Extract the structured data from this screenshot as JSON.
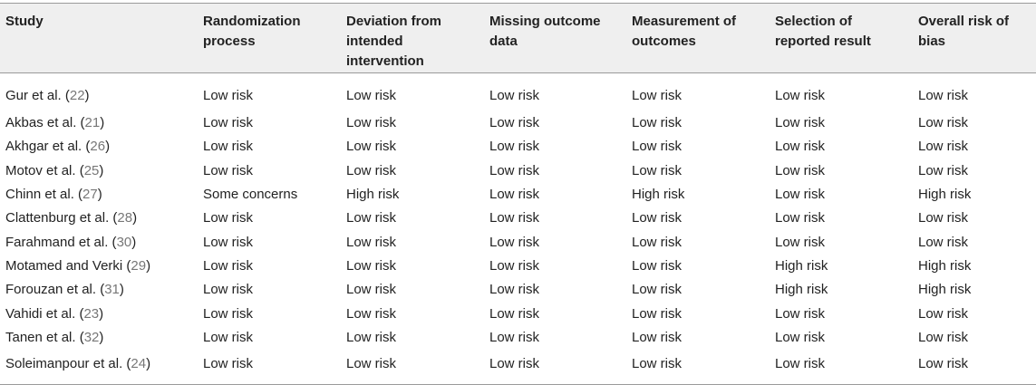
{
  "table": {
    "headers": [
      "Study",
      "Randomization process",
      "Deviation from intended intervention",
      "Missing outcome data",
      "Measurement of outcomes",
      "Selection of reported result",
      "Overall risk of bias"
    ],
    "rows": [
      {
        "study": "Gur et al. (",
        "ref": "22",
        "close": ")",
        "values": [
          "Low risk",
          "Low risk",
          "Low risk",
          "Low risk",
          "Low risk",
          "Low risk"
        ]
      },
      {
        "study": "Akbas et al. (",
        "ref": "21",
        "close": ")",
        "values": [
          "Low risk",
          "Low risk",
          "Low risk",
          "Low risk",
          "Low risk",
          "Low risk"
        ]
      },
      {
        "study": "Akhgar et al. (",
        "ref": "26",
        "close": ")",
        "values": [
          "Low risk",
          "Low risk",
          "Low risk",
          "Low risk",
          "Low risk",
          "Low risk"
        ]
      },
      {
        "study": "Motov et al. (",
        "ref": "25",
        "close": ")",
        "values": [
          "Low risk",
          "Low risk",
          "Low risk",
          "Low risk",
          "Low risk",
          "Low risk"
        ]
      },
      {
        "study": "Chinn et al. (",
        "ref": "27",
        "close": ")",
        "values": [
          "Some concerns",
          "High risk",
          "Low risk",
          "High risk",
          "Low risk",
          "High risk"
        ]
      },
      {
        "study": "Clattenburg et al. (",
        "ref": "28",
        "close": ")",
        "values": [
          "Low risk",
          "Low risk",
          "Low risk",
          "Low risk",
          "Low risk",
          "Low risk"
        ]
      },
      {
        "study": "Farahmand et al. (",
        "ref": "30",
        "close": ")",
        "values": [
          "Low risk",
          "Low risk",
          "Low risk",
          "Low risk",
          "Low risk",
          "Low risk"
        ]
      },
      {
        "study": "Motamed and Verki (",
        "ref": "29",
        "close": ")",
        "values": [
          "Low risk",
          "Low risk",
          "Low risk",
          "Low risk",
          "High risk",
          "High risk"
        ]
      },
      {
        "study": "Forouzan et al. (",
        "ref": "31",
        "close": ")",
        "values": [
          "Low risk",
          "Low risk",
          "Low risk",
          "Low risk",
          "High risk",
          "High risk"
        ]
      },
      {
        "study": "Vahidi et al. (",
        "ref": "23",
        "close": ")",
        "values": [
          "Low risk",
          "Low risk",
          "Low risk",
          "Low risk",
          "Low risk",
          "Low risk"
        ]
      },
      {
        "study": "Tanen et al. (",
        "ref": "32",
        "close": ")",
        "values": [
          "Low risk",
          "Low risk",
          "Low risk",
          "Low risk",
          "Low risk",
          "Low risk"
        ]
      },
      {
        "study": "Soleimanpour et al. (",
        "ref": "24",
        "close": ")",
        "values": [
          "Low risk",
          "Low risk",
          "Low risk",
          "Low risk",
          "Low risk",
          "Low risk"
        ]
      }
    ]
  }
}
